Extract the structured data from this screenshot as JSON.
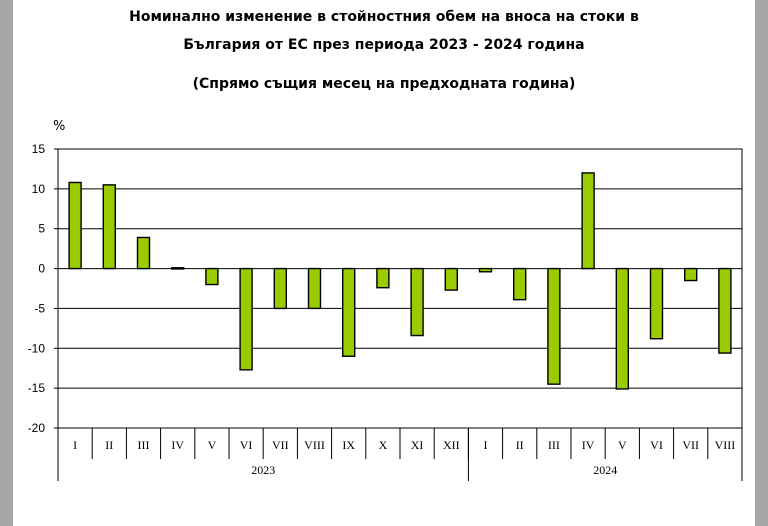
{
  "chart_data": {
    "type": "bar",
    "title": "Номинално изменение в стойностния обем на вноса на стоки в",
    "title_line2": "България от ЕС през периода 2023 - 2024 година",
    "subtitle": "(Спрямо същия месец на предходната година)",
    "ylabel": "%",
    "ylim": [
      -20,
      15
    ],
    "yticks": [
      "15",
      "10",
      "5",
      "0",
      "-5",
      "-10",
      "-15",
      "-20"
    ],
    "grid": true,
    "bar_color": "#99cc00",
    "categories": [
      "I",
      "II",
      "III",
      "IV",
      "V",
      "VI",
      "VII",
      "VIII",
      "IX",
      "X",
      "XI",
      "XII",
      "I",
      "II",
      "III",
      "IV",
      "V",
      "VI",
      "VII",
      "VIII"
    ],
    "groups": [
      {
        "label": "2023",
        "count": 12
      },
      {
        "label": "2024",
        "count": 8
      }
    ],
    "values": [
      10.8,
      10.5,
      3.9,
      0.1,
      -2.0,
      -12.7,
      -5.0,
      -5.0,
      -11.0,
      -2.4,
      -8.4,
      -2.7,
      -0.4,
      -3.9,
      -14.5,
      12.0,
      -15.1,
      -8.8,
      -1.5,
      -10.6
    ]
  }
}
